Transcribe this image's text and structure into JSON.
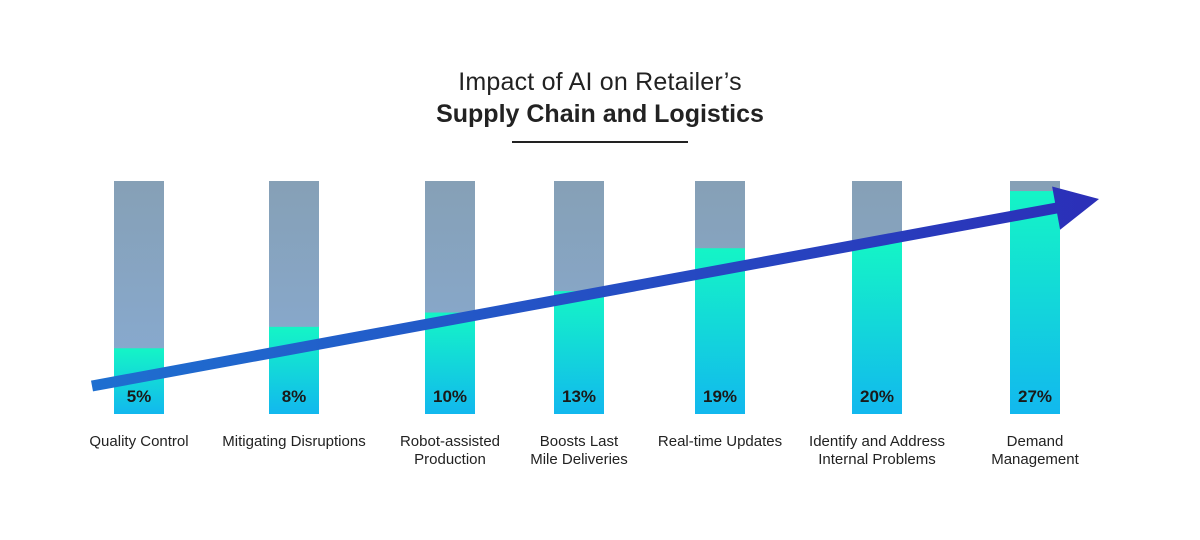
{
  "title": {
    "line1": "Impact of AI on Retailer’s",
    "line2": "Supply Chain and Logistics"
  },
  "colors": {
    "bar_background_top": "#86a0b6",
    "bar_background_bottom": "#88acd6",
    "bar_fill_top": "#14f5c6",
    "bar_fill_bottom": "#12b8ee",
    "arrow_start": "#1e6fd0",
    "arrow_end": "#2b2fb8"
  },
  "chart_data": {
    "type": "bar",
    "categories": [
      [
        "Quality Control"
      ],
      [
        "Mitigating Disruptions"
      ],
      [
        "Robot-assisted",
        "Production"
      ],
      [
        "Boosts Last",
        "Mile Deliveries"
      ],
      [
        "Real-time Updates"
      ],
      [
        "Identify and Address",
        "Internal Problems"
      ],
      [
        "Demand",
        "Management"
      ]
    ],
    "values": [
      5,
      8,
      10,
      13,
      19,
      20,
      27
    ],
    "value_labels": [
      "5%",
      "8%",
      "10%",
      "13%",
      "19%",
      "20%",
      "27%"
    ],
    "unit": "%",
    "ylim": [
      0,
      30
    ],
    "grid": false,
    "legend": "none",
    "annotation": "upward trend arrow"
  }
}
